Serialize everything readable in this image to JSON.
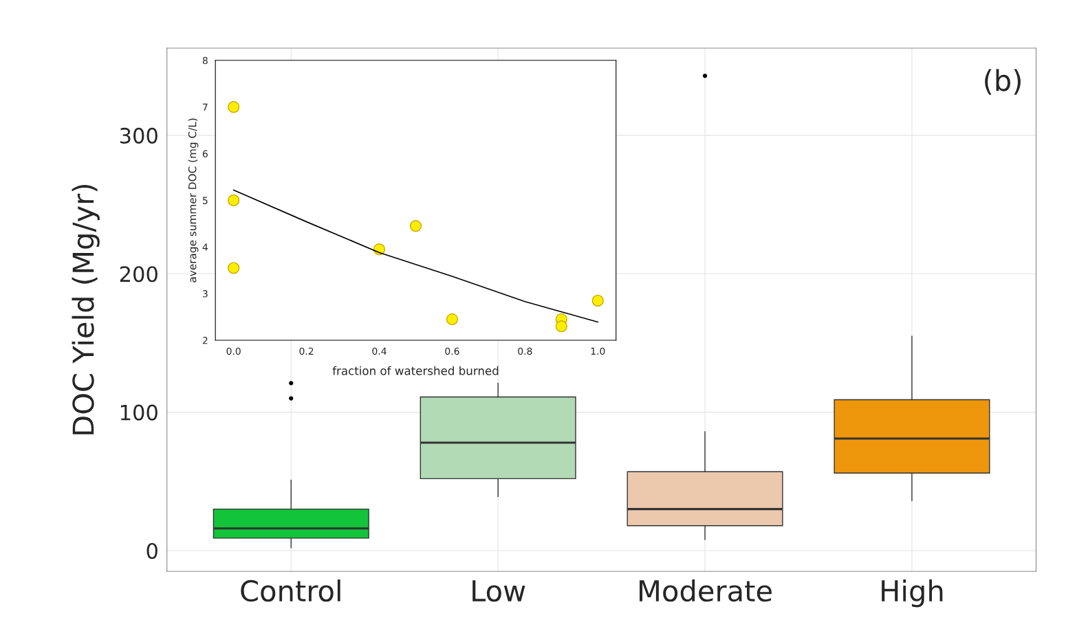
{
  "chart_data": [
    {
      "type": "box",
      "ylabel": "DOC Yield (Mg/yr)",
      "categories": [
        "Control",
        "Low",
        "Moderate",
        "High"
      ],
      "colors": [
        "#12c43a",
        "#b1dab5",
        "#ecc8ad",
        "#ee960c"
      ],
      "boxes": [
        {
          "low": 2,
          "q1": 9,
          "median": 16,
          "q3": 30,
          "high": 51,
          "outliers": [
            110,
            121
          ]
        },
        {
          "low": 39,
          "q1": 52,
          "median": 78,
          "q3": 111,
          "high": 121
        },
        {
          "low": 8,
          "q1": 18,
          "median": 30,
          "q3": 57,
          "high": 86,
          "outliers": [
            343
          ]
        },
        {
          "low": 36,
          "q1": 56,
          "median": 81,
          "q3": 109,
          "high": 155
        }
      ],
      "ylim": [
        -15,
        363
      ],
      "yticks": [
        0,
        100,
        200,
        300
      ],
      "grid": true,
      "annotations": [
        "(b)"
      ]
    },
    {
      "type": "scatter",
      "xlabel": "fraction of watershed burned",
      "ylabel": "average summer DOC (mg C/L)",
      "xlim": [
        -0.05,
        1.05
      ],
      "ylim": [
        2,
        8
      ],
      "xticks": [
        {
          "value": 0,
          "label": "0.0"
        },
        0.2,
        0.4,
        0.6,
        0.8,
        {
          "value": 1,
          "label": "1.0"
        }
      ],
      "yticks": [
        2,
        3,
        4,
        5,
        6,
        7,
        8
      ],
      "grid": false,
      "series": [
        {
          "type": "scatter",
          "marker": "circle",
          "color": "#ffee00",
          "x": [
            0,
            0,
            0,
            0.4,
            0.5,
            0.6,
            0.9,
            0.9,
            1.0
          ],
          "values": [
            7.0,
            5.0,
            3.55,
            3.95,
            4.45,
            2.45,
            2.45,
            2.3,
            2.85
          ]
        },
        {
          "type": "line",
          "color": "#000000",
          "x": [
            0,
            0.2,
            0.4,
            0.6,
            0.8,
            1.0
          ],
          "values": [
            5.22,
            4.54,
            3.88,
            3.37,
            2.83,
            2.39
          ]
        }
      ]
    }
  ]
}
